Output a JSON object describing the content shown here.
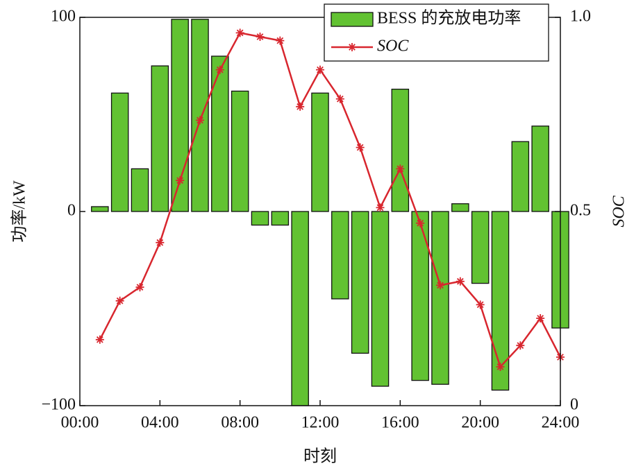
{
  "chart_data": {
    "type": "bar-line",
    "x": [
      1,
      2,
      3,
      4,
      5,
      6,
      7,
      8,
      9,
      10,
      11,
      12,
      13,
      14,
      15,
      16,
      17,
      18,
      19,
      20,
      21,
      22,
      23,
      24
    ],
    "series": [
      {
        "name": "BESS 的充放电功率",
        "type": "bar",
        "color": "#62c232",
        "values": [
          2.5,
          61,
          22,
          75,
          99,
          99,
          80,
          62,
          -7,
          -7,
          -100,
          61,
          -45,
          -73,
          -90,
          63,
          -87,
          -89,
          4,
          -37,
          -92,
          36,
          44,
          -60
        ]
      },
      {
        "name": "SOC",
        "type": "line",
        "axis": "y2",
        "color": "#d8262e",
        "values": [
          0.17,
          0.27,
          0.305,
          0.42,
          0.58,
          0.735,
          0.865,
          0.96,
          0.95,
          0.94,
          0.77,
          0.865,
          0.79,
          0.665,
          0.51,
          0.61,
          0.47,
          0.31,
          0.32,
          0.26,
          0.1,
          0.155,
          0.225,
          0.125
        ]
      }
    ],
    "xlabel": "时刻",
    "ylabel": "功率/kW",
    "y2label": "SOC",
    "xlim": [
      0,
      24
    ],
    "xticks": [
      {
        "value": 0,
        "label": "00:00"
      },
      {
        "value": 4,
        "label": "04:00"
      },
      {
        "value": 8,
        "label": "08:00"
      },
      {
        "value": 12,
        "label": "12:00"
      },
      {
        "value": 16,
        "label": "16:00"
      },
      {
        "value": 20,
        "label": "20:00"
      },
      {
        "value": 24,
        "label": "24:00"
      }
    ],
    "ylim": [
      -100,
      100
    ],
    "yticks": [
      {
        "value": -100,
        "label": "−100"
      },
      0,
      100
    ],
    "y2lim": [
      0,
      1
    ],
    "y2ticks": [
      0,
      0.5,
      {
        "value": 1,
        "label": "1.0"
      }
    ],
    "legend": "upper-right"
  }
}
